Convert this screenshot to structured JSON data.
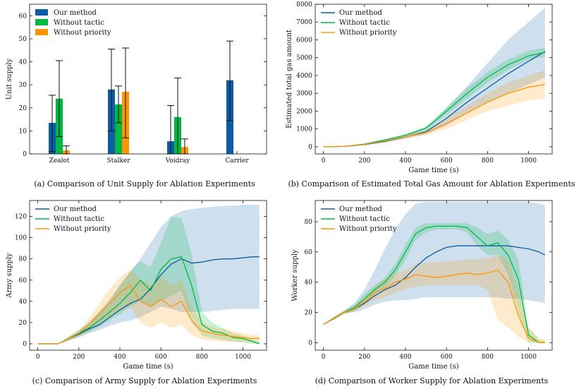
{
  "colors": {
    "our_method": "#0C5DA5",
    "without_tactic": "#00B945",
    "without_priority": "#FF9500"
  },
  "chart_data": [
    {
      "id": "a",
      "type": "bar",
      "caption": "(a) Comparison of Unit Supply for Ablation Experiments",
      "ylabel": "Unit supply",
      "xlabel": "",
      "ylim": [
        0,
        65
      ],
      "yticks": [
        0,
        10,
        20,
        30,
        40,
        50,
        60
      ],
      "categories": [
        "Zealot",
        "Stalker",
        "Voidray",
        "Carrier"
      ],
      "legend_position": "top-left",
      "series": [
        {
          "name": "Our method",
          "values": [
            13.5,
            28,
            5.5,
            32
          ],
          "err_low": [
            1,
            10,
            0,
            14.5
          ],
          "err_high": [
            25.5,
            45.5,
            21,
            49
          ]
        },
        {
          "name": "Without tactic",
          "values": [
            24,
            21.5,
            16,
            0
          ],
          "err_low": [
            7.5,
            13.5,
            0,
            0
          ],
          "err_high": [
            40.5,
            29.5,
            33,
            0
          ]
        },
        {
          "name": "Without priority",
          "values": [
            1.5,
            27,
            3,
            0
          ],
          "err_low": [
            0,
            7,
            0,
            0
          ],
          "err_high": [
            3.5,
            46,
            6.5,
            0
          ]
        }
      ]
    },
    {
      "id": "b",
      "type": "line",
      "caption": "(b) Comparison of Estimated Total Gas Amount for Ablation Experiments",
      "xlabel": "Game time (s)",
      "ylabel": "Estimated total gas amount",
      "xlim": [
        -40,
        1115
      ],
      "ylim": [
        -400,
        8000
      ],
      "xticks": [
        0,
        200,
        400,
        600,
        800,
        1000
      ],
      "yticks": [
        0,
        1000,
        2000,
        3000,
        4000,
        5000,
        6000,
        7000,
        8000
      ],
      "legend_position": "top-left",
      "x": [
        0,
        100,
        200,
        300,
        400,
        500,
        600,
        700,
        800,
        900,
        1000,
        1080
      ],
      "series": [
        {
          "name": "Our method",
          "values": [
            0,
            20,
            120,
            300,
            550,
            850,
            1600,
            2500,
            3300,
            4100,
            4800,
            5350
          ],
          "lower": [
            0,
            10,
            80,
            240,
            450,
            700,
            1200,
            1900,
            2500,
            3000,
            3500,
            3900
          ],
          "upper": [
            0,
            30,
            160,
            360,
            650,
            1000,
            2200,
            3400,
            4700,
            6000,
            7000,
            7800
          ]
        },
        {
          "name": "Without tactic",
          "values": [
            0,
            20,
            150,
            380,
            650,
            1050,
            2000,
            3000,
            3900,
            4600,
            5100,
            5300
          ],
          "lower": [
            0,
            15,
            120,
            320,
            580,
            950,
            1800,
            2700,
            3600,
            4300,
            4900,
            5050
          ],
          "upper": [
            0,
            25,
            180,
            440,
            720,
            1150,
            2200,
            3300,
            4200,
            4900,
            5400,
            5550
          ]
        },
        {
          "name": "Without priority",
          "values": [
            0,
            20,
            130,
            330,
            560,
            800,
            1300,
            1900,
            2500,
            3000,
            3350,
            3500
          ],
          "lower": [
            0,
            15,
            100,
            270,
            480,
            650,
            1000,
            1500,
            2000,
            2300,
            2600,
            2700
          ],
          "upper": [
            0,
            25,
            160,
            390,
            640,
            950,
            1600,
            2300,
            3000,
            3600,
            4000,
            4300
          ]
        }
      ]
    },
    {
      "id": "c",
      "type": "line",
      "caption": "(c) Comparison of Army Supply for Ablation Experiments",
      "xlabel": "Game time (s)",
      "ylabel": "Army supply",
      "xlim": [
        -40,
        1115
      ],
      "ylim": [
        -6,
        135
      ],
      "xticks": [
        0,
        200,
        400,
        600,
        800,
        1000
      ],
      "yticks": [
        0,
        20,
        40,
        60,
        80,
        100,
        120
      ],
      "legend_position": "top-left",
      "x": [
        0,
        100,
        150,
        200,
        250,
        300,
        350,
        400,
        450,
        500,
        550,
        600,
        650,
        700,
        750,
        800,
        850,
        900,
        950,
        1000,
        1050,
        1080
      ],
      "series": [
        {
          "name": "Our method",
          "values": [
            0,
            0,
            5,
            9,
            14,
            18,
            25,
            32,
            38,
            42,
            52,
            65,
            75,
            80,
            76,
            77,
            79,
            80,
            80,
            81,
            82,
            82
          ],
          "lower": [
            0,
            0,
            3,
            6,
            10,
            13,
            17,
            20,
            22,
            25,
            30,
            35,
            33,
            30,
            30,
            30,
            31,
            32,
            33,
            33,
            33,
            33
          ],
          "upper": [
            0,
            0,
            6,
            12,
            20,
            30,
            42,
            55,
            68,
            80,
            95,
            110,
            120,
            125,
            127,
            128,
            129,
            130,
            130,
            131,
            131,
            131
          ]
        },
        {
          "name": "Without tactic",
          "values": [
            0,
            0,
            5,
            10,
            15,
            22,
            30,
            38,
            48,
            60,
            50,
            70,
            80,
            82,
            55,
            18,
            12,
            10,
            6,
            5,
            2,
            0
          ],
          "lower": [
            0,
            0,
            3,
            7,
            11,
            16,
            22,
            28,
            35,
            40,
            35,
            40,
            45,
            50,
            20,
            8,
            5,
            4,
            2,
            1,
            0,
            0
          ],
          "upper": [
            0,
            0,
            7,
            13,
            20,
            30,
            40,
            55,
            68,
            78,
            72,
            95,
            120,
            118,
            85,
            30,
            20,
            15,
            10,
            8,
            4,
            2
          ]
        },
        {
          "name": "Without priority",
          "values": [
            0,
            0,
            5,
            10,
            18,
            28,
            38,
            48,
            55,
            40,
            35,
            42,
            35,
            40,
            22,
            12,
            10,
            8,
            7,
            6,
            5,
            5
          ],
          "lower": [
            0,
            0,
            3,
            7,
            12,
            18,
            25,
            30,
            35,
            20,
            15,
            20,
            15,
            18,
            8,
            4,
            3,
            2,
            2,
            2,
            1,
            1
          ],
          "upper": [
            0,
            0,
            7,
            13,
            24,
            38,
            52,
            62,
            70,
            60,
            55,
            65,
            55,
            60,
            35,
            20,
            16,
            14,
            12,
            10,
            8,
            8
          ]
        }
      ]
    },
    {
      "id": "d",
      "type": "line",
      "caption": "(d) Comparison of Worker Supply for Ablation Experiments",
      "xlabel": "Game time (s)",
      "ylabel": "Worker supply",
      "xlim": [
        -40,
        1115
      ],
      "ylim": [
        -5,
        94
      ],
      "xticks": [
        0,
        200,
        400,
        600,
        800,
        1000
      ],
      "yticks": [
        0,
        20,
        40,
        60,
        80
      ],
      "legend_position": "top-left",
      "x": [
        0,
        50,
        100,
        150,
        200,
        250,
        300,
        350,
        400,
        450,
        500,
        550,
        600,
        650,
        700,
        750,
        800,
        850,
        900,
        950,
        1000,
        1050,
        1080
      ],
      "series": [
        {
          "name": "Our method",
          "values": [
            12,
            16,
            20,
            22,
            26,
            31,
            35,
            38,
            43,
            50,
            56,
            60,
            63,
            64,
            64,
            64,
            64,
            64,
            64,
            63,
            62,
            60,
            58
          ],
          "lower": [
            12,
            15,
            19,
            20,
            22,
            25,
            27,
            28,
            28,
            29,
            30,
            30,
            30,
            30,
            30,
            30,
            30,
            30,
            29,
            29,
            28,
            27,
            26
          ],
          "upper": [
            12,
            17,
            21,
            26,
            35,
            48,
            62,
            75,
            85,
            92,
            93,
            93,
            93,
            93,
            93,
            93,
            93,
            93,
            93,
            93,
            93,
            92,
            91
          ]
        },
        {
          "name": "Without tactic",
          "values": [
            12,
            16,
            20,
            23,
            29,
            35,
            40,
            48,
            60,
            72,
            76,
            77,
            77,
            77,
            76,
            70,
            64,
            66,
            58,
            42,
            5,
            0,
            0
          ],
          "lower": [
            12,
            15,
            19,
            21,
            26,
            32,
            37,
            44,
            55,
            68,
            73,
            75,
            75,
            75,
            73,
            64,
            58,
            58,
            45,
            20,
            0,
            0,
            0
          ],
          "upper": [
            12,
            17,
            21,
            25,
            32,
            38,
            43,
            52,
            65,
            76,
            79,
            79,
            79,
            79,
            79,
            76,
            72,
            74,
            68,
            55,
            10,
            2,
            1
          ]
        },
        {
          "name": "Without priority",
          "values": [
            12,
            16,
            20,
            22,
            27,
            33,
            36,
            40,
            42,
            45,
            44,
            43,
            44,
            45,
            46,
            45,
            46,
            48,
            40,
            18,
            3,
            0,
            0
          ],
          "lower": [
            12,
            15,
            19,
            21,
            24,
            28,
            30,
            33,
            35,
            37,
            38,
            38,
            38,
            38,
            38,
            38,
            35,
            15,
            10,
            4,
            0,
            0,
            0
          ],
          "upper": [
            12,
            17,
            21,
            24,
            30,
            37,
            42,
            46,
            48,
            52,
            53,
            53,
            54,
            54,
            55,
            55,
            56,
            58,
            55,
            35,
            10,
            3,
            2
          ]
        }
      ]
    }
  ]
}
